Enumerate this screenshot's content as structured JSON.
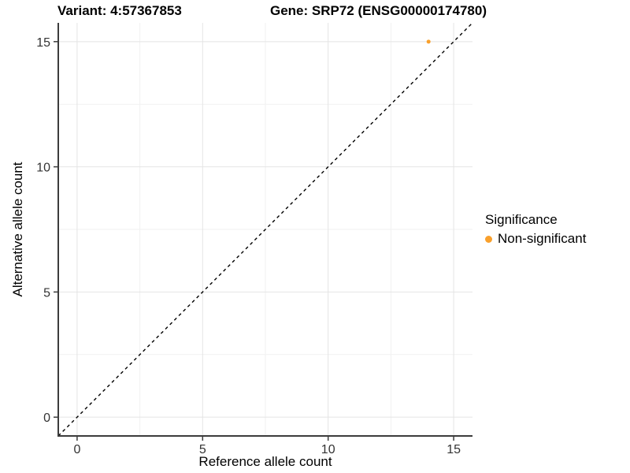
{
  "chart_data": {
    "type": "scatter",
    "title_left": "Variant: 4:57367853",
    "title_right": "Gene: SRP72 (ENSG00000174780)",
    "xlabel": "Reference allele count",
    "ylabel": "Alternative allele count",
    "xlim": [
      -0.75,
      15.75
    ],
    "ylim": [
      -0.75,
      15.75
    ],
    "xticks": [
      0,
      5,
      10,
      15
    ],
    "yticks": [
      0,
      5,
      10,
      15
    ],
    "minor_ticks": [
      2.5,
      7.5,
      12.5
    ],
    "grid": true,
    "points": [
      {
        "x": 14,
        "y": 15,
        "series": "Non-significant"
      }
    ],
    "reference_line": {
      "kind": "identity",
      "slope": 1,
      "intercept": 0,
      "style": "dashed",
      "color": "#000000"
    },
    "legend": {
      "title": "Significance",
      "position": "right",
      "items": [
        {
          "label": "Non-significant",
          "color": "#F9A02C"
        }
      ]
    },
    "colors": {
      "point": "#F9A02C",
      "grid_major": "#E4E4E4",
      "grid_minor": "#F1F1F1",
      "axis_line": "#3C3C3C",
      "tick_label": "#333333",
      "background": "#FFFFFF"
    }
  }
}
